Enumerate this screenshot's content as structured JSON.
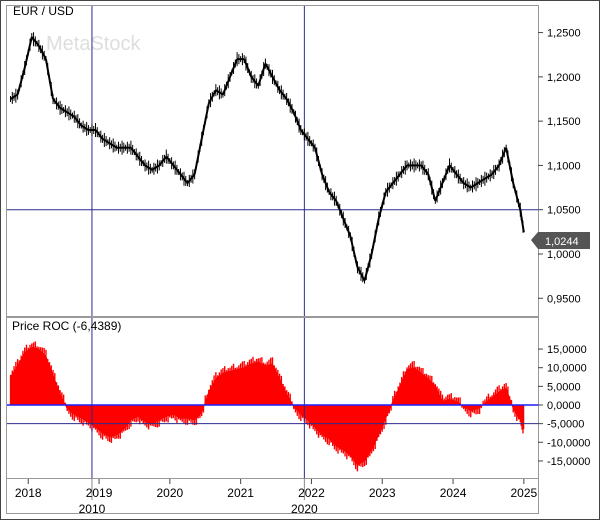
{
  "chart_data": [
    {
      "type": "line",
      "title": "EUR / USD",
      "watermark": "MetaStock",
      "last_value_label": "1,0244",
      "ylim": [
        0.93,
        1.28
      ],
      "y_ticks": [
        {
          "value": 1.25,
          "label": "1,2500"
        },
        {
          "value": 1.2,
          "label": "1,2000"
        },
        {
          "value": 1.15,
          "label": "1,1500"
        },
        {
          "value": 1.1,
          "label": "1,1000"
        },
        {
          "value": 1.05,
          "label": "1,0500"
        },
        {
          "value": 1.0,
          "label": "1,0000"
        },
        {
          "value": 0.95,
          "label": "0,9500"
        }
      ],
      "horizontal_line": 1.05,
      "vertical_lines": [
        2018.9,
        2021.9
      ],
      "x": [
        2017.75,
        2017.85,
        2017.95,
        2018.05,
        2018.15,
        2018.25,
        2018.35,
        2018.45,
        2018.55,
        2018.65,
        2018.75,
        2018.85,
        2018.95,
        2019.05,
        2019.15,
        2019.25,
        2019.35,
        2019.45,
        2019.55,
        2019.65,
        2019.75,
        2019.85,
        2019.95,
        2020.05,
        2020.15,
        2020.25,
        2020.35,
        2020.45,
        2020.55,
        2020.65,
        2020.75,
        2020.85,
        2020.95,
        2021.05,
        2021.15,
        2021.25,
        2021.35,
        2021.45,
        2021.55,
        2021.65,
        2021.75,
        2021.85,
        2021.95,
        2022.05,
        2022.15,
        2022.25,
        2022.35,
        2022.45,
        2022.55,
        2022.65,
        2022.75,
        2022.85,
        2022.95,
        2023.05,
        2023.15,
        2023.25,
        2023.35,
        2023.45,
        2023.55,
        2023.65,
        2023.75,
        2023.85,
        2023.95,
        2024.05,
        2024.15,
        2024.25,
        2024.35,
        2024.45,
        2024.55,
        2024.65,
        2024.75,
        2024.85,
        2024.95,
        2025.0
      ],
      "y": [
        1.175,
        1.18,
        1.21,
        1.245,
        1.235,
        1.22,
        1.175,
        1.165,
        1.16,
        1.155,
        1.145,
        1.14,
        1.14,
        1.13,
        1.125,
        1.12,
        1.12,
        1.12,
        1.11,
        1.1,
        1.095,
        1.1,
        1.11,
        1.1,
        1.09,
        1.08,
        1.09,
        1.13,
        1.17,
        1.185,
        1.18,
        1.2,
        1.22,
        1.22,
        1.2,
        1.19,
        1.215,
        1.2,
        1.185,
        1.175,
        1.16,
        1.14,
        1.13,
        1.12,
        1.09,
        1.07,
        1.06,
        1.04,
        1.02,
        0.985,
        0.97,
        1.0,
        1.04,
        1.07,
        1.08,
        1.09,
        1.1,
        1.1,
        1.1,
        1.09,
        1.06,
        1.08,
        1.1,
        1.09,
        1.08,
        1.075,
        1.08,
        1.085,
        1.09,
        1.1,
        1.12,
        1.08,
        1.05,
        1.0244
      ]
    },
    {
      "type": "area",
      "title": "Price ROC (-6,4389)",
      "ylim": [
        -18500,
        18500
      ],
      "y_ticks": [
        {
          "value": 15000,
          "label": "15,0000"
        },
        {
          "value": 10000,
          "label": "10,0000"
        },
        {
          "value": 5000,
          "label": "5,0000"
        },
        {
          "value": 0,
          "label": "0,0000"
        },
        {
          "value": -5000,
          "label": "-5,0000"
        },
        {
          "value": -10000,
          "label": "-10,0000"
        },
        {
          "value": -15000,
          "label": "-15,0000"
        }
      ],
      "horizontal_lines": [
        0,
        -5000
      ],
      "vertical_lines": [
        2018.9,
        2021.9
      ],
      "x": [
        2017.75,
        2017.85,
        2017.95,
        2018.05,
        2018.15,
        2018.25,
        2018.35,
        2018.45,
        2018.55,
        2018.65,
        2018.75,
        2018.85,
        2018.95,
        2019.05,
        2019.15,
        2019.25,
        2019.35,
        2019.45,
        2019.55,
        2019.65,
        2019.75,
        2019.85,
        2019.95,
        2020.05,
        2020.15,
        2020.25,
        2020.35,
        2020.45,
        2020.55,
        2020.65,
        2020.75,
        2020.85,
        2020.95,
        2021.05,
        2021.15,
        2021.25,
        2021.35,
        2021.45,
        2021.55,
        2021.65,
        2021.75,
        2021.85,
        2021.95,
        2022.05,
        2022.15,
        2022.25,
        2022.35,
        2022.45,
        2022.55,
        2022.65,
        2022.75,
        2022.85,
        2022.95,
        2023.05,
        2023.15,
        2023.25,
        2023.35,
        2023.45,
        2023.55,
        2023.65,
        2023.75,
        2023.85,
        2023.95,
        2024.05,
        2024.15,
        2024.25,
        2024.35,
        2024.45,
        2024.55,
        2024.65,
        2024.75,
        2024.85,
        2024.95,
        2025.0
      ],
      "y": [
        7500,
        10500,
        14000,
        15500,
        15000,
        13000,
        8000,
        3000,
        -1000,
        -2500,
        -3500,
        -4500,
        -6000,
        -7500,
        -8500,
        -8000,
        -6500,
        -4000,
        -3000,
        -4500,
        -5000,
        -4000,
        -3000,
        -2500,
        -3500,
        -3500,
        -4000,
        -2000,
        3500,
        7000,
        8500,
        9000,
        9500,
        10000,
        11000,
        11500,
        10500,
        11000,
        7000,
        3000,
        -500,
        -2500,
        -4000,
        -6000,
        -8000,
        -9000,
        -11000,
        -12000,
        -13500,
        -16000,
        -15000,
        -12000,
        -8000,
        -3500,
        1000,
        5000,
        9500,
        10000,
        8500,
        7000,
        5000,
        1000,
        1500,
        1000,
        -500,
        -1500,
        -1000,
        500,
        2000,
        3500,
        4500,
        -1000,
        -4000,
        -6439
      ]
    }
  ],
  "x_axis": {
    "xlim": [
      2017.7,
      2025.2
    ],
    "year_ticks": [
      {
        "value": 2018,
        "label": "2018"
      },
      {
        "value": 2019,
        "label": "2019"
      },
      {
        "value": 2020,
        "label": "2020"
      },
      {
        "value": 2021,
        "label": "2021"
      },
      {
        "value": 2022,
        "label": "2022"
      },
      {
        "value": 2023,
        "label": "2023"
      },
      {
        "value": 2024,
        "label": "2024"
      },
      {
        "value": 2025,
        "label": "2025"
      }
    ],
    "decade_labels": [
      {
        "value": 2018.9,
        "label": "2010"
      },
      {
        "value": 2021.9,
        "label": "2020"
      }
    ]
  },
  "colors": {
    "price_line": "#000000",
    "roc_fill": "#ff0000",
    "roc_stroke": "#cc0000",
    "guide_lines": "#2b2b8f",
    "zero_line": "#1f1fff",
    "frame": "#444444",
    "label_box": "#555555",
    "label_text": "#ffffff"
  }
}
